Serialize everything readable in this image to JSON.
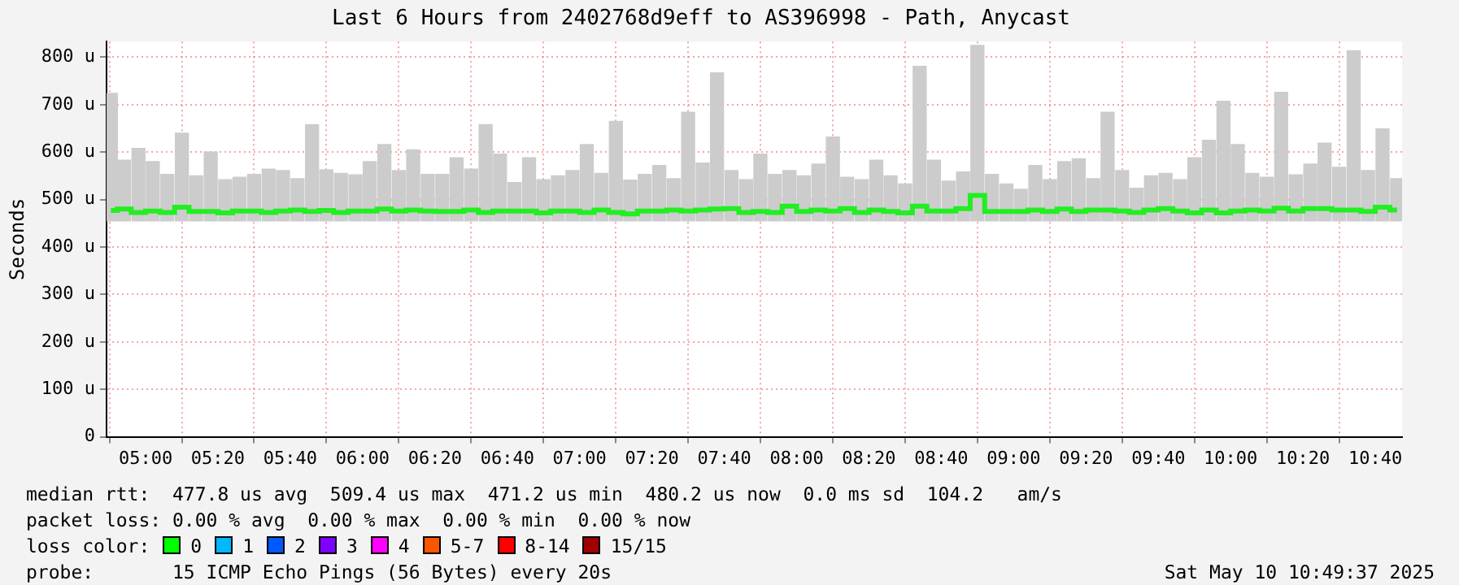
{
  "chart_data": {
    "type": "bar",
    "title": "Last 6 Hours from 2402768d9eff to AS396998 - Path, Anycast",
    "ylabel": "Seconds",
    "x": [
      4.84,
      4.9,
      4.967,
      5.033,
      5.1,
      5.167,
      5.233,
      5.3,
      5.367,
      5.433,
      5.5,
      5.567,
      5.633,
      5.7,
      5.767,
      5.833,
      5.9,
      5.967,
      6.033,
      6.1,
      6.167,
      6.233,
      6.3,
      6.367,
      6.433,
      6.5,
      6.567,
      6.633,
      6.7,
      6.767,
      6.833,
      6.9,
      6.967,
      7.033,
      7.1,
      7.167,
      7.233,
      7.3,
      7.367,
      7.433,
      7.5,
      7.567,
      7.633,
      7.7,
      7.767,
      7.833,
      7.9,
      7.967,
      8.033,
      8.1,
      8.167,
      8.233,
      8.3,
      8.367,
      8.433,
      8.5,
      8.567,
      8.633,
      8.7,
      8.767,
      8.833,
      8.9,
      8.967,
      9.033,
      9.1,
      9.167,
      9.233,
      9.3,
      9.367,
      9.433,
      9.5,
      9.567,
      9.633,
      9.7,
      9.767,
      9.833,
      9.9,
      9.967,
      10.033,
      10.1,
      10.167,
      10.233,
      10.3,
      10.367,
      10.433,
      10.5,
      10.567,
      10.633,
      10.7,
      10.767
    ],
    "series": [
      {
        "color": "#cccccc",
        "base": [
          455,
          455,
          455,
          455,
          455,
          455,
          455,
          455,
          455,
          455,
          455,
          455,
          455,
          455,
          455,
          455,
          455,
          455,
          455,
          455,
          455,
          455,
          455,
          455,
          455,
          455,
          455,
          455,
          455,
          455,
          455,
          455,
          455,
          455,
          455,
          455,
          455,
          455,
          455,
          455,
          455,
          455,
          455,
          455,
          455,
          455,
          455,
          455,
          455,
          455,
          455,
          455,
          455,
          455,
          455,
          455,
          455,
          455,
          455,
          455,
          455,
          455,
          455,
          455,
          455,
          455,
          455,
          455,
          455,
          455,
          455,
          455,
          455,
          455,
          455,
          455,
          455,
          455,
          455,
          455,
          455,
          455,
          455,
          455,
          455,
          455,
          455,
          455,
          455,
          455
        ],
        "values": [
          269,
          128,
          153,
          125,
          98,
          185,
          95,
          145,
          87,
          92,
          98,
          109,
          106,
          89,
          203,
          108,
          100,
          97,
          125,
          161,
          106,
          150,
          98,
          98,
          133,
          109,
          203,
          141,
          81,
          133,
          87,
          95,
          106,
          161,
          100,
          210,
          86,
          98,
          117,
          89,
          229,
          122,
          312,
          106,
          87,
          141,
          98,
          106,
          95,
          120,
          177,
          92,
          87,
          128,
          95,
          78,
          326,
          128,
          84,
          103,
          370,
          98,
          78,
          67,
          117,
          87,
          125,
          131,
          89,
          229,
          106,
          69,
          95,
          100,
          87,
          133,
          170,
          252,
          161,
          100,
          92,
          271,
          97,
          120,
          164,
          113,
          359,
          106,
          194,
          89
        ]
      },
      {
        "type": "step",
        "color": "#22ee22",
        "values": [
          477,
          480,
          473,
          476,
          473,
          484,
          475,
          475,
          472,
          476,
          476,
          473,
          476,
          478,
          475,
          477,
          473,
          476,
          476,
          480,
          476,
          478,
          476,
          475,
          475,
          478,
          473,
          476,
          476,
          476,
          472,
          476,
          476,
          473,
          478,
          473,
          470,
          476,
          476,
          478,
          476,
          478,
          480,
          481,
          473,
          475,
          473,
          486,
          475,
          478,
          476,
          481,
          473,
          478,
          475,
          472,
          486,
          476,
          476,
          481,
          509,
          475,
          475,
          475,
          478,
          475,
          480,
          475,
          478,
          478,
          476,
          473,
          478,
          481,
          476,
          472,
          478,
          472,
          476,
          478,
          476,
          482,
          476,
          481,
          481,
          478,
          478,
          475,
          484,
          478
        ]
      }
    ],
    "xlim": [
      4.82,
      10.79
    ],
    "xticks": [
      {
        "value": 5,
        "label": "05:00"
      },
      {
        "value": 5.3333,
        "label": "05:20"
      },
      {
        "value": 5.6667,
        "label": "05:40"
      },
      {
        "value": 6,
        "label": "06:00"
      },
      {
        "value": 6.3333,
        "label": "06:20"
      },
      {
        "value": 6.6667,
        "label": "06:40"
      },
      {
        "value": 7,
        "label": "07:00"
      },
      {
        "value": 7.3333,
        "label": "07:20"
      },
      {
        "value": 7.6667,
        "label": "07:40"
      },
      {
        "value": 8,
        "label": "08:00"
      },
      {
        "value": 8.3333,
        "label": "08:20"
      },
      {
        "value": 8.6667,
        "label": "08:40"
      },
      {
        "value": 9,
        "label": "09:00"
      },
      {
        "value": 9.3333,
        "label": "09:20"
      },
      {
        "value": 9.6667,
        "label": "09:40"
      },
      {
        "value": 10,
        "label": "10:00"
      },
      {
        "value": 10.3333,
        "label": "10:20"
      },
      {
        "value": 10.6667,
        "label": "10:40"
      }
    ],
    "ylim": [
      0,
      833
    ],
    "yticks": [
      0,
      {
        "value": 100,
        "label": "100 u"
      },
      {
        "value": 200,
        "label": "200 u"
      },
      {
        "value": 300,
        "label": "300 u"
      },
      {
        "value": 400,
        "label": "400 u"
      },
      {
        "value": 500,
        "label": "500 u"
      },
      {
        "value": 600,
        "label": "600 u"
      },
      {
        "value": 700,
        "label": "700 u"
      },
      {
        "value": 800,
        "label": "800 u"
      }
    ],
    "grid": true,
    "legend": false,
    "annotations": [
      "median rtt:  477.8 us avg  509.4 us max  471.2 us min  480.2 us now  0.0 ms sd  104.2   am/s",
      "packet loss: 0.00 % avg  0.00 % max  0.00 % min  0.00 % now",
      "loss color:",
      "0",
      "1",
      "2",
      "3",
      "4",
      "5-7",
      "8-14",
      "15/15",
      "probe:       15 ICMP Echo Pings (56 Bytes) every 20s",
      "Sat May 10 10:49:37 2025"
    ]
  }
}
